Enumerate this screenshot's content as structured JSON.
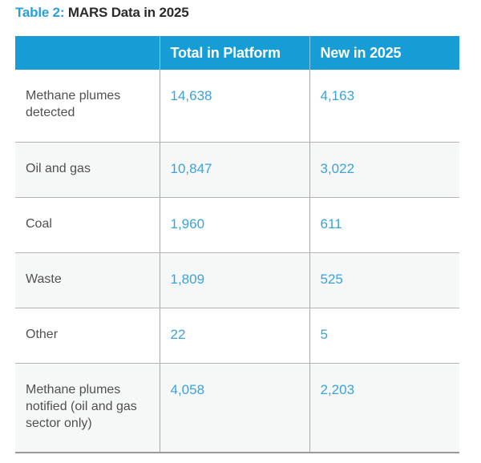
{
  "title": {
    "prefix": "Table 2:",
    "text": " MARS Data in 2025"
  },
  "table": {
    "headers": [
      "",
      "Total in Platform",
      "New in 2025"
    ],
    "rows": [
      {
        "label": "Methane plumes detected",
        "total": "14,638",
        "new": "4,163",
        "height": 90
      },
      {
        "label": "Oil and gas",
        "total": "10,847",
        "new": "3,022",
        "height": 69
      },
      {
        "label": "Coal",
        "total": "1,960",
        "new": "611",
        "height": 69
      },
      {
        "label": "Waste",
        "total": "1,809",
        "new": "525",
        "height": 69
      },
      {
        "label": "Other",
        "total": "22",
        "new": "5",
        "height": 69
      },
      {
        "label": "Methane plumes notified (oil and gas sector only)",
        "total": "4,058",
        "new": "2,203",
        "height": 112
      }
    ]
  },
  "colors": {
    "header_bg": "#169dd6",
    "accent": "#2ba0d8",
    "number": "#3aa3dc",
    "alt_row": "#f6f7f7"
  }
}
